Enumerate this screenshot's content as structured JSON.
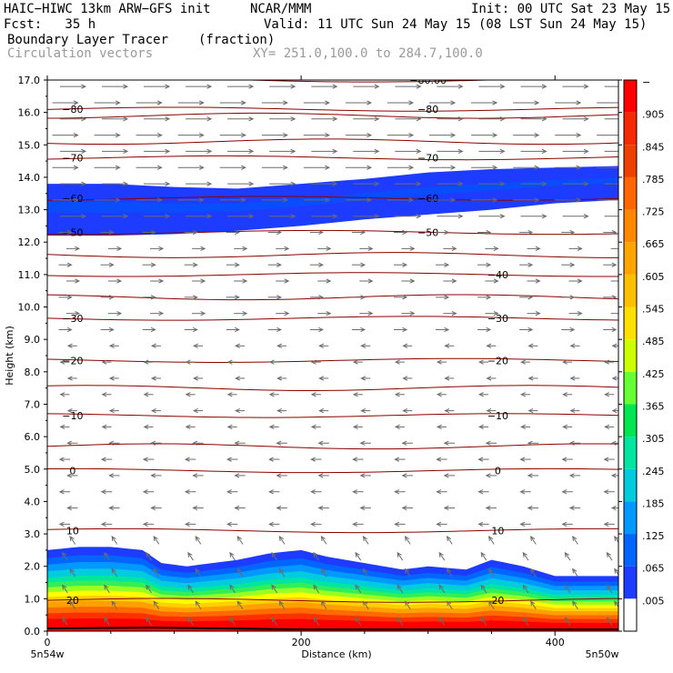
{
  "header": {
    "title_line1": "HAIC−HIWC 13km ARW−GFS init",
    "org": "NCAR/MMM",
    "init": "Init: 00 UTC Sat 23 May 15",
    "fcst": "Fcst:   35 h",
    "valid": "Valid: 11 UTC Sun 24 May 15 (08 LST Sun 24 May 15)",
    "field": "Boundary Layer Tracer",
    "units": "(fraction)",
    "vectors": "Circulation vectors",
    "xy": "XY= 251.0,100.0 to 284.7,100.0"
  },
  "chart_data": {
    "type": "heatmap",
    "xlabel": "Distance (km)",
    "ylabel": "Height (km)",
    "xlim": [
      0,
      450
    ],
    "ylim": [
      0,
      17
    ],
    "x_ticks": [
      0,
      200,
      400
    ],
    "y_ticks": [
      "0.0",
      "1.0",
      "2.0",
      "3.0",
      "4.0",
      "5.0",
      "6.0",
      "7.0",
      "8.0",
      "9.0",
      "10.0",
      "11.0",
      "12.0",
      "13.0",
      "14.0",
      "15.0",
      "16.0",
      "17.0"
    ],
    "x_endpoints": {
      "left": "5n54w",
      "right": "5n50w"
    },
    "colorbar": {
      "labels": [
        "−",
        ".905",
        ".845",
        ".785",
        ".725",
        ".665",
        ".605",
        ".545",
        ".485",
        ".425",
        ".365",
        ".305",
        ".245",
        ".185",
        ".125",
        ".065",
        ".005"
      ],
      "colors": [
        "#ff0000",
        "#f52a00",
        "#f04000",
        "#ff6600",
        "#ff8800",
        "#ffa500",
        "#ffc000",
        "#ffe000",
        "#ccff00",
        "#66ff33",
        "#00e650",
        "#00e6a0",
        "#00ccdd",
        "#0099ff",
        "#0066ff",
        "#1e3cff",
        "#ffffff"
      ]
    },
    "temperature_contours": [
      {
        "label": "20",
        "z": 0.95
      },
      {
        "label": "10",
        "z": 3.1
      },
      {
        "label": "0",
        "z": 4.95
      },
      {
        "label": "-10",
        "z": 6.65
      },
      {
        "label": "-20",
        "z": 8.35
      },
      {
        "label": "-30",
        "z": 9.65
      },
      {
        "label": "-40",
        "z": 11.0
      },
      {
        "label": "-50",
        "z": 12.3
      },
      {
        "label": "-60",
        "z": 13.35
      },
      {
        "label": "-70",
        "z": 14.6
      },
      {
        "label": "-80",
        "z": 16.1
      },
      {
        "label": "-80.00",
        "z": 17.0
      }
    ],
    "upper_plume": {
      "x": [
        0,
        50,
        100,
        150,
        200,
        250,
        300,
        350,
        400,
        450
      ],
      "bottom": [
        12.2,
        12.2,
        12.25,
        12.35,
        12.5,
        12.7,
        12.85,
        13.0,
        13.2,
        13.3
      ],
      "top": [
        13.8,
        13.8,
        13.7,
        13.65,
        13.8,
        13.95,
        14.15,
        14.25,
        14.3,
        14.35
      ]
    },
    "boundary_layer": {
      "x": [
        0,
        25,
        50,
        75,
        90,
        110,
        150,
        175,
        200,
        220,
        250,
        280,
        300,
        330,
        350,
        375,
        400,
        425,
        450
      ],
      "top": [
        2.5,
        2.6,
        2.6,
        2.5,
        2.1,
        2.0,
        2.2,
        2.4,
        2.5,
        2.3,
        2.1,
        1.9,
        2.0,
        1.9,
        2.2,
        2.0,
        1.7,
        1.7,
        1.7
      ]
    }
  }
}
